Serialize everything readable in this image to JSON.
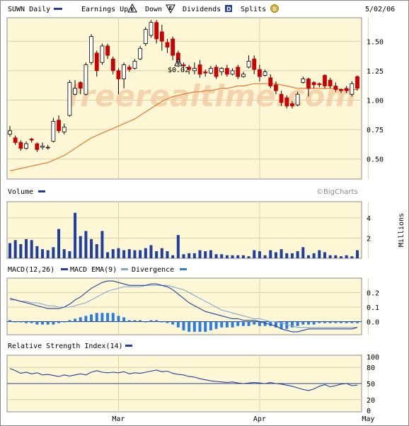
{
  "header": {
    "symbol_label": "SUWN Daily",
    "earnings_label": "Earnings Up",
    "earnings_up_glyph": "E",
    "down_label": "Down",
    "earnings_down_glyph": "E",
    "dividends_label": "Dividends",
    "dividend_glyph": "D",
    "splits_label": "Splits",
    "split_glyph": "S",
    "date": "5/02/06"
  },
  "colors": {
    "panel_bg": "#fdf7d6",
    "grid": "#d9d0a8",
    "up": "#ffffff",
    "down": "#cc0000",
    "ma": "#e8762a",
    "volume": "#1f3fa0",
    "macd": "#1f3fa0",
    "ema": "#7fa8d8",
    "divergence": "#2a7de0",
    "rsi": "#1f3fa0",
    "watermark": "#f3c9a0"
  },
  "watermark": "freerealtime.com",
  "copyright": "©BigCharts",
  "volume_title": "Volume",
  "volume_unit": "Millions",
  "macd_title": "MACD(12,26)",
  "macd_ema_title": "MACD EMA(9)",
  "divergence_title": "Divergence",
  "rsi_title": "Relative Strength Index(14)",
  "dividend_annotation": "$0.02",
  "chart_data": {
    "type": "candlestick",
    "y_ticks": [
      "1.50",
      "1.25",
      "1.00",
      "0.75",
      "0.50"
    ],
    "y_tick_values": [
      1.5,
      1.25,
      1.0,
      0.75,
      0.5
    ],
    "ylim": [
      0.33,
      1.7
    ],
    "x_labels": [
      "Mar",
      "Apr",
      "May"
    ],
    "x_label_index": [
      20,
      46,
      66
    ],
    "candles": [
      {
        "o": 0.71,
        "h": 0.78,
        "l": 0.69,
        "c": 0.74
      },
      {
        "o": 0.68,
        "h": 0.7,
        "l": 0.62,
        "c": 0.64
      },
      {
        "o": 0.64,
        "h": 0.66,
        "l": 0.57,
        "c": 0.59
      },
      {
        "o": 0.59,
        "h": 0.65,
        "l": 0.58,
        "c": 0.63
      },
      {
        "o": 0.67,
        "h": 0.68,
        "l": 0.64,
        "c": 0.66
      },
      {
        "o": 0.63,
        "h": 0.64,
        "l": 0.56,
        "c": 0.58
      },
      {
        "o": 0.6,
        "h": 0.64,
        "l": 0.58,
        "c": 0.61
      },
      {
        "o": 0.6,
        "h": 0.62,
        "l": 0.58,
        "c": 0.6
      },
      {
        "o": 0.65,
        "h": 0.85,
        "l": 0.64,
        "c": 0.82
      },
      {
        "o": 0.83,
        "h": 0.87,
        "l": 0.72,
        "c": 0.74
      },
      {
        "o": 0.73,
        "h": 0.8,
        "l": 0.71,
        "c": 0.77
      },
      {
        "o": 0.87,
        "h": 1.17,
        "l": 0.86,
        "c": 1.15
      },
      {
        "o": 1.05,
        "h": 1.17,
        "l": 1.04,
        "c": 1.1
      },
      {
        "o": 1.15,
        "h": 1.16,
        "l": 1.05,
        "c": 1.1
      },
      {
        "o": 1.05,
        "h": 1.32,
        "l": 1.04,
        "c": 1.3
      },
      {
        "o": 1.32,
        "h": 1.56,
        "l": 1.3,
        "c": 1.54
      },
      {
        "o": 1.4,
        "h": 1.42,
        "l": 1.2,
        "c": 1.25
      },
      {
        "o": 1.32,
        "h": 1.48,
        "l": 1.3,
        "c": 1.46
      },
      {
        "o": 1.46,
        "h": 1.48,
        "l": 1.35,
        "c": 1.38
      },
      {
        "o": 1.35,
        "h": 1.37,
        "l": 1.22,
        "c": 1.25
      },
      {
        "o": 1.25,
        "h": 1.27,
        "l": 1.05,
        "c": 1.18
      },
      {
        "o": 1.18,
        "h": 1.32,
        "l": 1.1,
        "c": 1.3
      },
      {
        "o": 1.28,
        "h": 1.3,
        "l": 1.24,
        "c": 1.26
      },
      {
        "o": 1.27,
        "h": 1.35,
        "l": 1.26,
        "c": 1.33
      },
      {
        "o": 1.35,
        "h": 1.46,
        "l": 1.34,
        "c": 1.44
      },
      {
        "o": 1.48,
        "h": 1.62,
        "l": 1.46,
        "c": 1.6
      },
      {
        "o": 1.55,
        "h": 1.68,
        "l": 1.53,
        "c": 1.66
      },
      {
        "o": 1.66,
        "h": 1.68,
        "l": 1.48,
        "c": 1.52
      },
      {
        "o": 1.58,
        "h": 1.64,
        "l": 1.42,
        "c": 1.5
      },
      {
        "o": 1.49,
        "h": 1.52,
        "l": 1.4,
        "c": 1.45
      },
      {
        "o": 1.52,
        "h": 1.54,
        "l": 1.34,
        "c": 1.38
      },
      {
        "o": 1.4,
        "h": 1.42,
        "l": 1.28,
        "c": 1.3
      },
      {
        "o": 1.3,
        "h": 1.32,
        "l": 1.24,
        "c": 1.29
      },
      {
        "o": 1.28,
        "h": 1.3,
        "l": 1.22,
        "c": 1.26
      },
      {
        "o": 1.25,
        "h": 1.32,
        "l": 1.22,
        "c": 1.27
      },
      {
        "o": 1.3,
        "h": 1.34,
        "l": 1.19,
        "c": 1.22
      },
      {
        "o": 1.24,
        "h": 1.26,
        "l": 1.2,
        "c": 1.23
      },
      {
        "o": 1.23,
        "h": 1.29,
        "l": 1.22,
        "c": 1.27
      },
      {
        "o": 1.28,
        "h": 1.3,
        "l": 1.18,
        "c": 1.2
      },
      {
        "o": 1.24,
        "h": 1.28,
        "l": 1.21,
        "c": 1.27
      },
      {
        "o": 1.27,
        "h": 1.3,
        "l": 1.2,
        "c": 1.22
      },
      {
        "o": 1.22,
        "h": 1.27,
        "l": 1.21,
        "c": 1.25
      },
      {
        "o": 1.28,
        "h": 1.3,
        "l": 1.18,
        "c": 1.2
      },
      {
        "o": 1.2,
        "h": 1.24,
        "l": 1.19,
        "c": 1.22
      },
      {
        "o": 1.28,
        "h": 1.38,
        "l": 1.27,
        "c": 1.33
      },
      {
        "o": 1.35,
        "h": 1.38,
        "l": 1.22,
        "c": 1.26
      },
      {
        "o": 1.26,
        "h": 1.3,
        "l": 1.16,
        "c": 1.2
      },
      {
        "o": 1.21,
        "h": 1.26,
        "l": 1.2,
        "c": 1.24
      },
      {
        "o": 1.19,
        "h": 1.22,
        "l": 1.1,
        "c": 1.12
      },
      {
        "o": 1.13,
        "h": 1.16,
        "l": 1.05,
        "c": 1.08
      },
      {
        "o": 1.05,
        "h": 1.08,
        "l": 0.95,
        "c": 0.98
      },
      {
        "o": 1.02,
        "h": 1.04,
        "l": 0.93,
        "c": 0.95
      },
      {
        "o": 0.97,
        "h": 0.99,
        "l": 0.93,
        "c": 0.95
      },
      {
        "o": 0.96,
        "h": 1.07,
        "l": 0.95,
        "c": 1.05
      },
      {
        "o": 1.15,
        "h": 1.2,
        "l": 1.14,
        "c": 1.18
      },
      {
        "o": 1.18,
        "h": 1.19,
        "l": 1.03,
        "c": 1.1
      },
      {
        "o": 1.15,
        "h": 1.16,
        "l": 1.1,
        "c": 1.13
      },
      {
        "o": 1.14,
        "h": 1.15,
        "l": 1.11,
        "c": 1.13
      },
      {
        "o": 1.21,
        "h": 1.22,
        "l": 1.1,
        "c": 1.12
      },
      {
        "o": 1.17,
        "h": 1.19,
        "l": 1.1,
        "c": 1.12
      },
      {
        "o": 1.12,
        "h": 1.15,
        "l": 1.07,
        "c": 1.09
      },
      {
        "o": 1.09,
        "h": 1.1,
        "l": 1.06,
        "c": 1.08
      },
      {
        "o": 1.1,
        "h": 1.12,
        "l": 1.06,
        "c": 1.08
      },
      {
        "o": 1.05,
        "h": 1.16,
        "l": 1.03,
        "c": 1.14
      },
      {
        "o": 1.2,
        "h": 1.21,
        "l": 1.08,
        "c": 1.1
      }
    ],
    "moving_average": [
      0.4,
      0.41,
      0.42,
      0.43,
      0.44,
      0.45,
      0.46,
      0.47,
      0.49,
      0.51,
      0.53,
      0.56,
      0.59,
      0.62,
      0.65,
      0.68,
      0.7,
      0.72,
      0.74,
      0.76,
      0.78,
      0.8,
      0.82,
      0.84,
      0.87,
      0.9,
      0.93,
      0.96,
      0.99,
      1.01,
      1.03,
      1.04,
      1.05,
      1.06,
      1.07,
      1.07,
      1.08,
      1.08,
      1.09,
      1.1,
      1.1,
      1.11,
      1.12,
      1.12,
      1.13,
      1.14,
      1.14,
      1.14,
      1.14,
      1.14,
      1.13,
      1.12,
      1.11,
      1.1,
      1.1,
      1.1,
      1.1,
      1.1,
      1.1,
      1.1,
      1.1,
      1.09,
      1.09,
      1.09,
      1.09
    ],
    "volume_ticks": [
      4,
      2
    ],
    "volume_ylim": [
      0,
      5.6
    ],
    "volume": [
      1.5,
      1.8,
      1.4,
      1.9,
      1.8,
      1.2,
      0.9,
      0.8,
      1.1,
      2.9,
      0.9,
      0.7,
      4.5,
      2.2,
      2.7,
      1.9,
      1.4,
      2.7,
      0.6,
      0.9,
      1.0,
      0.8,
      0.9,
      0.8,
      0.8,
      1.0,
      1.3,
      0.7,
      1.0,
      0.7,
      0.3,
      2.3,
      0.4,
      0.5,
      0.5,
      0.8,
      0.7,
      0.8,
      0.4,
      0.4,
      0.3,
      0.3,
      0.3,
      0.3,
      0.2,
      0.8,
      0.7,
      0.3,
      0.8,
      0.6,
      0.9,
      0.5,
      0.5,
      0.7,
      1.1,
      0.3,
      0.5,
      0.8,
      0.6,
      0.3,
      0.3,
      0.2,
      0.3,
      0.2,
      0.8
    ],
    "macd_ticks": [
      "0.2",
      "0.1",
      "0.0"
    ],
    "macd_tick_values": [
      0.2,
      0.1,
      0.0
    ],
    "macd_ylim": [
      -0.09,
      0.3
    ],
    "macd": [
      0.16,
      0.15,
      0.14,
      0.13,
      0.12,
      0.11,
      0.1,
      0.09,
      0.09,
      0.09,
      0.1,
      0.12,
      0.15,
      0.17,
      0.2,
      0.23,
      0.25,
      0.27,
      0.28,
      0.28,
      0.27,
      0.26,
      0.25,
      0.25,
      0.25,
      0.25,
      0.26,
      0.26,
      0.25,
      0.24,
      0.22,
      0.19,
      0.16,
      0.13,
      0.11,
      0.09,
      0.07,
      0.06,
      0.05,
      0.04,
      0.03,
      0.02,
      0.02,
      0.01,
      0.01,
      0.01,
      0.0,
      -0.01,
      -0.02,
      -0.03,
      -0.05,
      -0.06,
      -0.07,
      -0.07,
      -0.06,
      -0.05,
      -0.05,
      -0.05,
      -0.05,
      -0.05,
      -0.05,
      -0.05,
      -0.05,
      -0.05,
      -0.04
    ],
    "macd_ema": [
      0.15,
      0.15,
      0.14,
      0.14,
      0.13,
      0.13,
      0.12,
      0.11,
      0.11,
      0.1,
      0.1,
      0.1,
      0.11,
      0.12,
      0.13,
      0.15,
      0.17,
      0.19,
      0.21,
      0.22,
      0.23,
      0.24,
      0.24,
      0.24,
      0.24,
      0.25,
      0.25,
      0.25,
      0.25,
      0.25,
      0.24,
      0.23,
      0.22,
      0.2,
      0.18,
      0.16,
      0.14,
      0.12,
      0.1,
      0.08,
      0.07,
      0.06,
      0.05,
      0.04,
      0.03,
      0.02,
      0.02,
      0.01,
      0.0,
      0.0,
      -0.01,
      -0.02,
      -0.03,
      -0.04,
      -0.04,
      -0.04,
      -0.04,
      -0.04,
      -0.04,
      -0.04,
      -0.04,
      -0.04,
      -0.04,
      -0.04,
      -0.04
    ],
    "divergence": [
      0.01,
      0.0,
      0.0,
      -0.01,
      -0.01,
      -0.02,
      -0.02,
      -0.02,
      -0.02,
      -0.01,
      0.0,
      0.01,
      0.02,
      0.03,
      0.04,
      0.05,
      0.06,
      0.06,
      0.06,
      0.06,
      0.04,
      0.03,
      0.01,
      0.01,
      0.01,
      0.0,
      0.01,
      0.01,
      0.0,
      -0.01,
      -0.02,
      -0.04,
      -0.06,
      -0.07,
      -0.07,
      -0.07,
      -0.07,
      -0.06,
      -0.05,
      -0.04,
      -0.04,
      -0.04,
      -0.03,
      -0.03,
      -0.03,
      -0.02,
      -0.03,
      -0.03,
      -0.03,
      -0.04,
      -0.05,
      -0.05,
      -0.04,
      -0.03,
      -0.02,
      -0.02,
      -0.02,
      -0.01,
      -0.01,
      -0.01,
      -0.01,
      -0.01,
      -0.01,
      -0.01,
      -0.01
    ],
    "rsi_ticks": [
      "100",
      "80",
      "50",
      "20",
      "0"
    ],
    "rsi_tick_values": [
      100,
      80,
      50,
      20,
      0
    ],
    "rsi_ylim": [
      0,
      100
    ],
    "rsi_reference": 50,
    "rsi": [
      78,
      74,
      69,
      71,
      68,
      70,
      66,
      67,
      65,
      63,
      66,
      64,
      66,
      68,
      66,
      71,
      74,
      71,
      70,
      71,
      70,
      72,
      68,
      70,
      69,
      71,
      73,
      75,
      72,
      73,
      69,
      67,
      66,
      63,
      62,
      59,
      57,
      55,
      54,
      53,
      52,
      53,
      51,
      50,
      51,
      52,
      51,
      50,
      52,
      50,
      49,
      47,
      45,
      42,
      39,
      37,
      40,
      45,
      48,
      44,
      46,
      49,
      50,
      46,
      47
    ]
  }
}
